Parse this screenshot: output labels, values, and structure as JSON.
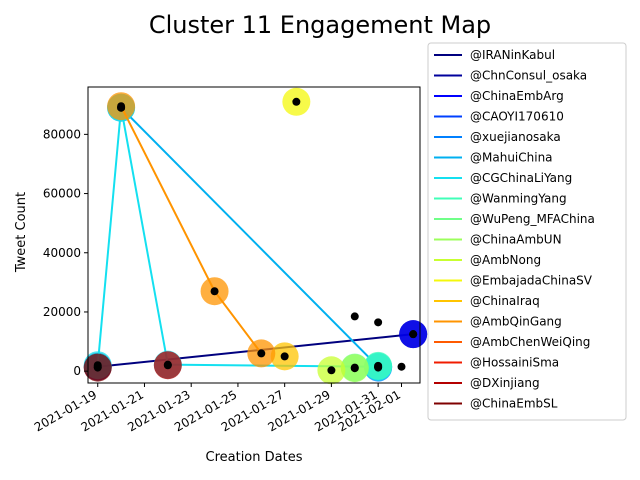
{
  "chart_data": {
    "type": "scatter",
    "title": "Cluster 11 Engagement Map",
    "xlabel": "Creation Dates",
    "ylabel": "Tweet Count",
    "xlim": [
      "2021-01-18T14:00",
      "2021-02-01T19:00"
    ],
    "ylim": [
      -4000,
      96000
    ],
    "x_ticks": [
      "2021-01-19",
      "2021-01-21",
      "2021-01-23",
      "2021-01-25",
      "2021-01-27",
      "2021-01-29",
      "2021-01-31",
      "2021-02-01"
    ],
    "y_ticks": [
      0,
      20000,
      40000,
      60000,
      80000
    ],
    "grid": false,
    "legend_position": "outside-right",
    "series": [
      {
        "name": "@IRANinKabul",
        "color": "#00007f",
        "points": [
          {
            "x": "2021-01-19T00:00",
            "y": 1500
          },
          {
            "x": "2021-02-01T12:00",
            "y": 12500
          }
        ]
      },
      {
        "name": "@ChnConsul_osaka",
        "color": "#00009c",
        "points": []
      },
      {
        "name": "@ChinaEmbArg",
        "color": "#0000ff",
        "points": [
          {
            "x": "2021-02-01T12:00",
            "y": 12500
          }
        ]
      },
      {
        "name": "@CAOYI170610",
        "color": "#0040ff",
        "points": []
      },
      {
        "name": "@xuejianosaka",
        "color": "#0080ff",
        "points": [
          {
            "x": "2021-01-31T00:00",
            "y": 1200
          }
        ]
      },
      {
        "name": "@MahuiChina",
        "color": "#00b0f0",
        "points": [
          {
            "x": "2021-01-20T00:00",
            "y": 89000
          },
          {
            "x": "2021-01-31T00:00",
            "y": 1500
          }
        ]
      },
      {
        "name": "@CGChinaLiYang",
        "color": "#14e0f0",
        "points": [
          {
            "x": "2021-01-19T00:00",
            "y": 2000
          },
          {
            "x": "2021-01-20T00:00",
            "y": 89000
          },
          {
            "x": "2021-01-22T00:00",
            "y": 2200
          },
          {
            "x": "2021-01-31T00:00",
            "y": 1500
          }
        ]
      },
      {
        "name": "@WanmingYang",
        "color": "#40ffb8",
        "points": [
          {
            "x": "2021-01-31T00:00",
            "y": 1800
          }
        ]
      },
      {
        "name": "@WuPeng_MFAChina",
        "color": "#70ff88",
        "points": [
          {
            "x": "2021-01-30T00:00",
            "y": 1200
          }
        ]
      },
      {
        "name": "@ChinaAmbUN",
        "color": "#9cff5c",
        "points": [
          {
            "x": "2021-01-30T00:00",
            "y": 1000
          }
        ]
      },
      {
        "name": "@AmbNong",
        "color": "#c8ff30",
        "points": [
          {
            "x": "2021-01-29T00:00",
            "y": 300
          }
        ]
      },
      {
        "name": "@EmbajadaChinaSV",
        "color": "#f4f80c",
        "points": [
          {
            "x": "2021-01-27T12:00",
            "y": 91000
          }
        ]
      },
      {
        "name": "@ChinaIraq",
        "color": "#ffc400",
        "points": [
          {
            "x": "2021-01-27T00:00",
            "y": 5000
          }
        ]
      },
      {
        "name": "@AmbQinGang",
        "color": "#ff9400",
        "points": [
          {
            "x": "2021-01-20T00:00",
            "y": 89500
          },
          {
            "x": "2021-01-24T00:00",
            "y": 27000
          },
          {
            "x": "2021-01-26T00:00",
            "y": 6000
          }
        ]
      },
      {
        "name": "@AmbChenWeiQing",
        "color": "#ff5a00",
        "points": []
      },
      {
        "name": "@HossainiSma",
        "color": "#f01c00",
        "points": []
      },
      {
        "name": "@DXinjiang",
        "color": "#b40000",
        "points": [
          {
            "x": "2021-01-22T00:00",
            "y": 2000
          }
        ]
      },
      {
        "name": "@ChinaEmbSL",
        "color": "#7f0000",
        "points": [
          {
            "x": "2021-01-19T00:00",
            "y": 1200
          }
        ]
      }
    ],
    "extra_points": [
      {
        "x": "2021-01-30T00:00",
        "y": 18500
      },
      {
        "x": "2021-01-31T00:00",
        "y": 16500
      },
      {
        "x": "2021-02-01T00:00",
        "y": 1500
      }
    ]
  }
}
